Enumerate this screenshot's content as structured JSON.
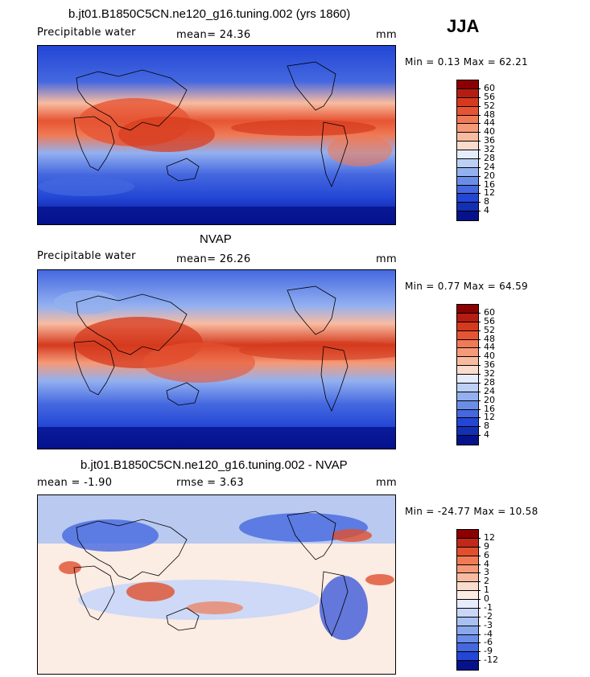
{
  "season": "JJA",
  "panels": [
    {
      "title": "b.jt01.B1850C5CN.ne120_g16.tuning.002 (yrs 1860)",
      "left_label": "Precipitable water",
      "mid_label": "mean=  24.36",
      "units": "mm",
      "minmax": "Min =   0.13 Max =  62.21",
      "levels": [
        "60",
        "56",
        "52",
        "48",
        "44",
        "40",
        "36",
        "32",
        "28",
        "24",
        "20",
        "16",
        "12",
        "8",
        "4"
      ]
    },
    {
      "title": "NVAP",
      "left_label": "Precipitable water",
      "mid_label": "mean=  26.26",
      "units": "mm",
      "minmax": "Min =   0.77 Max =  64.59",
      "levels": [
        "60",
        "56",
        "52",
        "48",
        "44",
        "40",
        "36",
        "32",
        "28",
        "24",
        "20",
        "16",
        "12",
        "8",
        "4"
      ]
    },
    {
      "title": "b.jt01.B1850C5CN.ne120_g16.tuning.002 - NVAP",
      "left_label": "mean =  -1.90",
      "mid_label": "rmse =   3.63",
      "units": "mm",
      "minmax": "Min = -24.77 Max =  10.58",
      "levels": [
        "12",
        "9",
        "6",
        "4",
        "3",
        "2",
        "1",
        "0",
        "-1",
        "-2",
        "-3",
        "-4",
        "-6",
        "-9",
        "-12"
      ]
    }
  ],
  "colors": {
    "absolute_scale": [
      "#8b0000",
      "#b51d12",
      "#d53a1e",
      "#e65533",
      "#f07a55",
      "#f59a78",
      "#f8bba0",
      "#fadccd",
      "#e6ecfb",
      "#bcd0f6",
      "#93b0f0",
      "#6a8ee8",
      "#4568e0",
      "#2346d5",
      "#1230b4",
      "#05128c"
    ],
    "anomaly_scale": [
      "#8b0000",
      "#c0281a",
      "#e0502e",
      "#f07a55",
      "#f59a78",
      "#f8bba0",
      "#fadccd",
      "#fbece4",
      "#e6ecfb",
      "#c8d7f7",
      "#a9c0f3",
      "#8aa7ee",
      "#6a8ee8",
      "#4568e0",
      "#2346d5",
      "#05128c"
    ]
  }
}
